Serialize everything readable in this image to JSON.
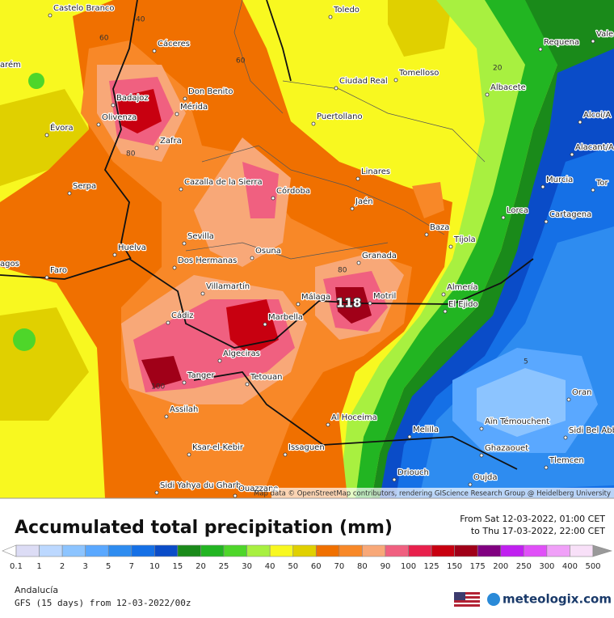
{
  "map": {
    "labels": [
      "Castelo Branco",
      "Toledo",
      "Cáceres",
      "Requena",
      "Vale",
      "arém",
      "Tomelloso",
      "Ciudad Real",
      "Albacete",
      "Don Benito",
      "Badajoz",
      "Mérida",
      "Olivenza",
      "Puertollano",
      "Alcoi/A",
      "Évora",
      "Zafra",
      "Alacant/A",
      "Linares",
      "Cazalla de la Sierra",
      "Serpa",
      "Córdoba",
      "Murcia",
      "Tor",
      "Jaén",
      "Lorca",
      "Cartagena",
      "Baza",
      "Sevilla",
      "Tíjola",
      "Huelva",
      "Osuna",
      "Granada",
      "agos",
      "Dos Hermanas",
      "Faro",
      "Villamartín",
      "Almería",
      "Málaga",
      "Motril",
      "El Ejido",
      "Cádiz",
      "Marbella",
      "Algeciras",
      "Tanger",
      "Tetouan",
      "Oran",
      "Assilah",
      "Al Hoceima",
      "Aïn Témouchent",
      "Melilla",
      "Sidi Bel Abbès",
      "Issaguen",
      "Ghazaouet",
      "Ksar-el-Kebir",
      "Tlemcen",
      "Driouch",
      "Oujda",
      "Sidi Yahya du Gharb",
      "Ouazzane"
    ],
    "contour_labels": [
      40,
      60,
      60,
      80,
      80,
      100,
      20,
      5
    ],
    "max_label": 118,
    "attribution": "Map data © OpenStreetMap contributors, rendering GIScience Research Group @ Heidelberg University"
  },
  "legend": {
    "title": "Accumulated total precipitation (mm)",
    "period_from": "From Sat 12-03-2022, 01:00 CET",
    "period_to": "to Thu 17-03-2022, 22:00 CET",
    "ticks": [
      0.1,
      1,
      2,
      3,
      5,
      7,
      10,
      15,
      20,
      25,
      30,
      40,
      50,
      60,
      70,
      80,
      90,
      100,
      125,
      150,
      175,
      200,
      250,
      300,
      400,
      500
    ],
    "colors": [
      "#dcdcf5",
      "#bcd8ff",
      "#8cc4ff",
      "#5aa8ff",
      "#2e8cf0",
      "#1570e6",
      "#0a4cc8",
      "#1a8a1a",
      "#22b522",
      "#4ed62a",
      "#a8f040",
      "#f8f820",
      "#e0d000",
      "#f07000",
      "#f88828",
      "#f8a878",
      "#f06080",
      "#e8204c",
      "#c80010",
      "#a00018",
      "#800080",
      "#c020f0",
      "#e050f8",
      "#f0a0f8",
      "#f8e0f8"
    ]
  },
  "footer": {
    "region": "Andalucía",
    "model": "GFS (15 days) from 12-03-2022/00z",
    "brand": "meteologix.com"
  }
}
